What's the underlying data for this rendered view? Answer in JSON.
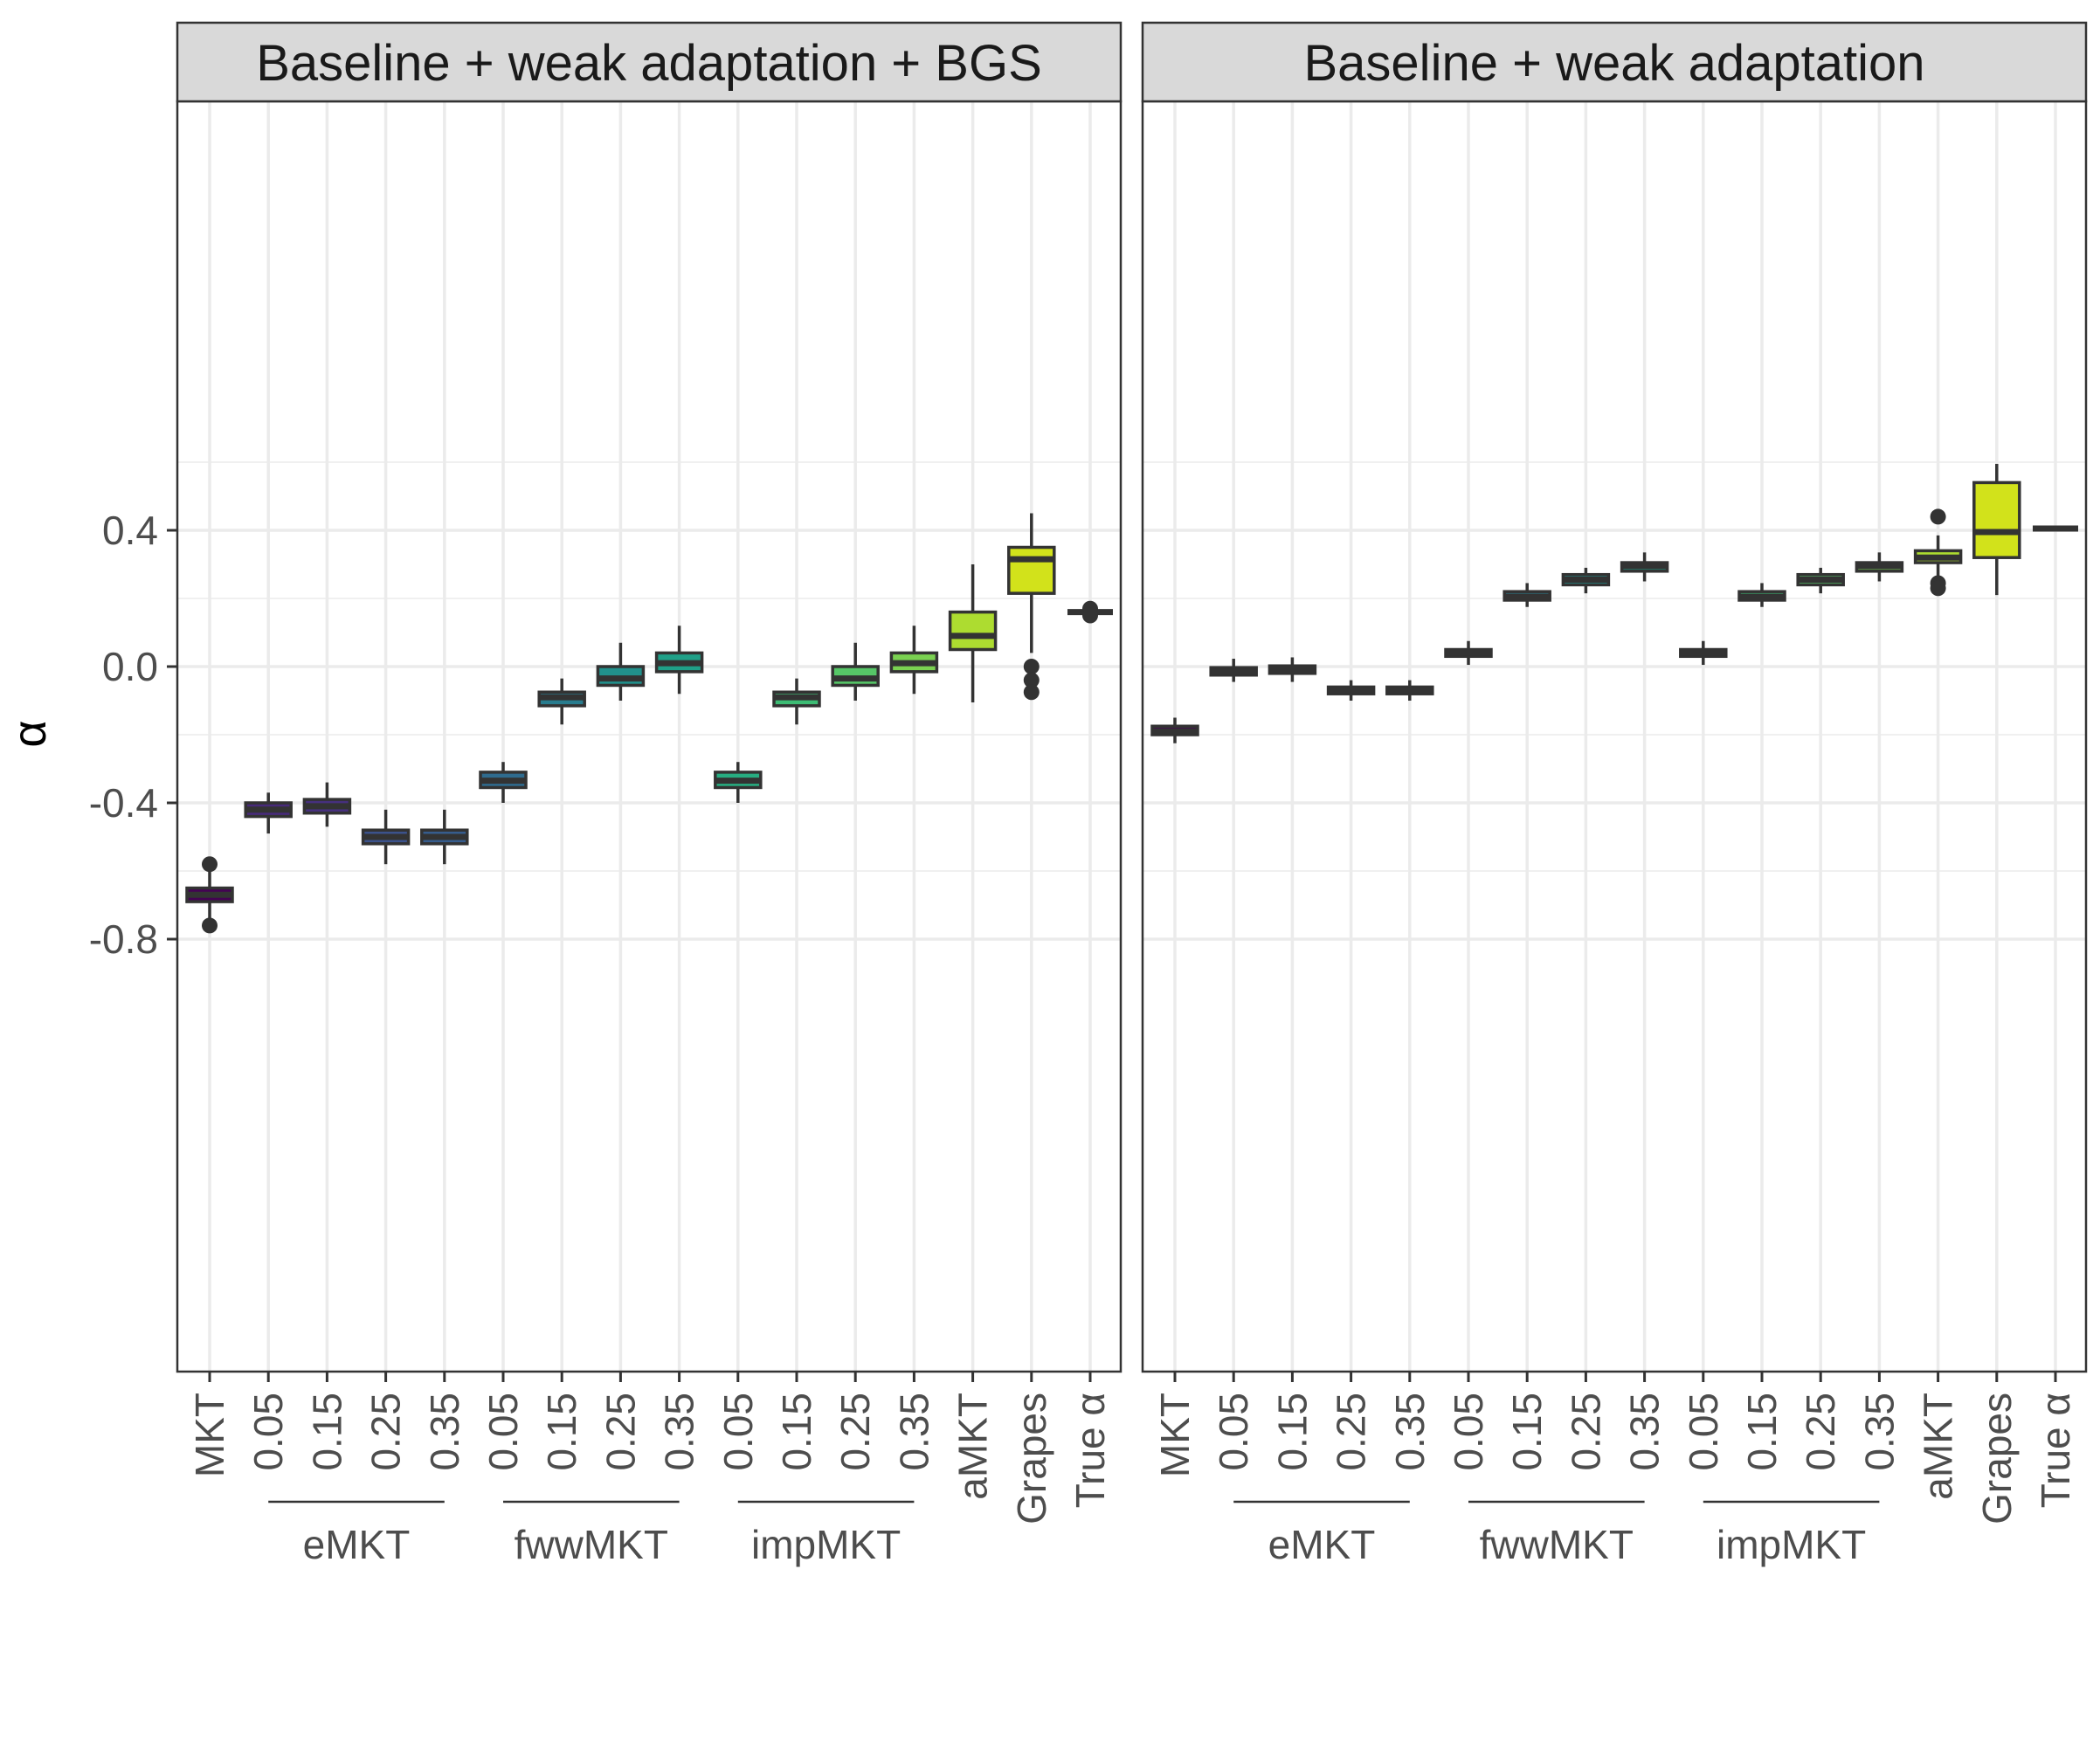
{
  "chart_data": {
    "type": "boxplot",
    "ylabel": "α",
    "ylim": [
      -0.83,
      0.66
    ],
    "y_ticks": [
      "0.4",
      "0.0",
      "-0.4",
      "-0.8"
    ],
    "y_tick_values": [
      0.4,
      0.0,
      -0.4,
      -0.8
    ],
    "grid": true,
    "categories": [
      {
        "label": "MKT",
        "color": "#440154"
      },
      {
        "label": "0.05",
        "color": "#472a7a"
      },
      {
        "label": "0.15",
        "color": "#46307e"
      },
      {
        "label": "0.25",
        "color": "#3b528b"
      },
      {
        "label": "0.35",
        "color": "#365c8d"
      },
      {
        "label": "0.05",
        "color": "#2f6b8e"
      },
      {
        "label": "0.15",
        "color": "#287c8e"
      },
      {
        "label": "0.25",
        "color": "#21918c"
      },
      {
        "label": "0.35",
        "color": "#1fa088"
      },
      {
        "label": "0.05",
        "color": "#27ad81"
      },
      {
        "label": "0.15",
        "color": "#3dbc74"
      },
      {
        "label": "0.25",
        "color": "#56c667"
      },
      {
        "label": "0.35",
        "color": "#7ad151"
      },
      {
        "label": "aMKT",
        "color": "#addc30"
      },
      {
        "label": "Grapes",
        "color": "#d2e21b"
      },
      {
        "label": "True α",
        "color": "#fde725"
      }
    ],
    "groups": [
      {
        "label": "eMKT",
        "from": 1,
        "to": 4
      },
      {
        "label": "fwwMKT",
        "from": 5,
        "to": 8
      },
      {
        "label": "impMKT",
        "from": 9,
        "to": 12
      }
    ],
    "facets": [
      {
        "title": "Baseline + weak adaptation + BGS",
        "boxes": [
          {
            "whisker_low": -0.74,
            "q1": -0.69,
            "median": -0.67,
            "q3": -0.65,
            "whisker_high": -0.6,
            "outliers": [
              -0.58,
              -0.76
            ]
          },
          {
            "whisker_low": -0.49,
            "q1": -0.44,
            "median": -0.42,
            "q3": -0.4,
            "whisker_high": -0.37,
            "outliers": []
          },
          {
            "whisker_low": -0.47,
            "q1": -0.43,
            "median": -0.41,
            "q3": -0.39,
            "whisker_high": -0.34,
            "outliers": []
          },
          {
            "whisker_low": -0.58,
            "q1": -0.52,
            "median": -0.5,
            "q3": -0.48,
            "whisker_high": -0.42,
            "outliers": []
          },
          {
            "whisker_low": -0.58,
            "q1": -0.52,
            "median": -0.5,
            "q3": -0.48,
            "whisker_high": -0.42,
            "outliers": []
          },
          {
            "whisker_low": -0.4,
            "q1": -0.355,
            "median": -0.335,
            "q3": -0.31,
            "whisker_high": -0.28,
            "outliers": []
          },
          {
            "whisker_low": -0.17,
            "q1": -0.115,
            "median": -0.09,
            "q3": -0.075,
            "whisker_high": -0.035,
            "outliers": []
          },
          {
            "whisker_low": -0.1,
            "q1": -0.055,
            "median": -0.035,
            "q3": 0.0,
            "whisker_high": 0.07,
            "outliers": []
          },
          {
            "whisker_low": -0.08,
            "q1": -0.015,
            "median": 0.01,
            "q3": 0.04,
            "whisker_high": 0.12,
            "outliers": []
          },
          {
            "whisker_low": -0.4,
            "q1": -0.355,
            "median": -0.335,
            "q3": -0.31,
            "whisker_high": -0.28,
            "outliers": []
          },
          {
            "whisker_low": -0.17,
            "q1": -0.115,
            "median": -0.09,
            "q3": -0.075,
            "whisker_high": -0.035,
            "outliers": []
          },
          {
            "whisker_low": -0.1,
            "q1": -0.055,
            "median": -0.035,
            "q3": 0.0,
            "whisker_high": 0.07,
            "outliers": []
          },
          {
            "whisker_low": -0.08,
            "q1": -0.015,
            "median": 0.01,
            "q3": 0.04,
            "whisker_high": 0.12,
            "outliers": []
          },
          {
            "whisker_low": -0.105,
            "q1": 0.05,
            "median": 0.09,
            "q3": 0.16,
            "whisker_high": 0.3,
            "outliers": []
          },
          {
            "whisker_low": 0.04,
            "q1": 0.215,
            "median": 0.315,
            "q3": 0.35,
            "whisker_high": 0.45,
            "outliers": [
              0.0,
              -0.04,
              -0.075
            ]
          },
          {
            "whisker_low": 0.16,
            "q1": 0.16,
            "median": 0.16,
            "q3": 0.16,
            "whisker_high": 0.16,
            "outliers": [
              0.17,
              0.15
            ]
          }
        ]
      },
      {
        "title": "Baseline + weak adaptation",
        "boxes": [
          {
            "whisker_low": -0.225,
            "q1": -0.2,
            "median": -0.19,
            "q3": -0.175,
            "whisker_high": -0.15,
            "outliers": []
          },
          {
            "whisker_low": -0.045,
            "q1": -0.025,
            "median": -0.015,
            "q3": -0.003,
            "whisker_high": 0.023,
            "outliers": []
          },
          {
            "whisker_low": -0.045,
            "q1": -0.02,
            "median": -0.01,
            "q3": 0.002,
            "whisker_high": 0.027,
            "outliers": []
          },
          {
            "whisker_low": -0.1,
            "q1": -0.08,
            "median": -0.07,
            "q3": -0.06,
            "whisker_high": -0.04,
            "outliers": []
          },
          {
            "whisker_low": -0.1,
            "q1": -0.08,
            "median": -0.07,
            "q3": -0.06,
            "whisker_high": -0.04,
            "outliers": []
          },
          {
            "whisker_low": 0.005,
            "q1": 0.03,
            "median": 0.04,
            "q3": 0.05,
            "whisker_high": 0.075,
            "outliers": []
          },
          {
            "whisker_low": 0.175,
            "q1": 0.195,
            "median": 0.205,
            "q3": 0.22,
            "whisker_high": 0.245,
            "outliers": []
          },
          {
            "whisker_low": 0.215,
            "q1": 0.24,
            "median": 0.255,
            "q3": 0.27,
            "whisker_high": 0.29,
            "outliers": []
          },
          {
            "whisker_low": 0.25,
            "q1": 0.28,
            "median": 0.295,
            "q3": 0.305,
            "whisker_high": 0.335,
            "outliers": []
          },
          {
            "whisker_low": 0.005,
            "q1": 0.03,
            "median": 0.04,
            "q3": 0.05,
            "whisker_high": 0.075,
            "outliers": []
          },
          {
            "whisker_low": 0.175,
            "q1": 0.195,
            "median": 0.205,
            "q3": 0.22,
            "whisker_high": 0.245,
            "outliers": []
          },
          {
            "whisker_low": 0.215,
            "q1": 0.24,
            "median": 0.255,
            "q3": 0.27,
            "whisker_high": 0.29,
            "outliers": []
          },
          {
            "whisker_low": 0.25,
            "q1": 0.28,
            "median": 0.295,
            "q3": 0.305,
            "whisker_high": 0.335,
            "outliers": []
          },
          {
            "whisker_low": 0.265,
            "q1": 0.305,
            "median": 0.32,
            "q3": 0.34,
            "whisker_high": 0.385,
            "outliers": [
              0.44,
              0.245,
              0.23
            ]
          },
          {
            "whisker_low": 0.21,
            "q1": 0.32,
            "median": 0.395,
            "q3": 0.54,
            "whisker_high": 0.595,
            "outliers": []
          },
          {
            "whisker_low": 0.405,
            "q1": 0.405,
            "median": 0.405,
            "q3": 0.405,
            "whisker_high": 0.405,
            "outliers": []
          }
        ]
      }
    ]
  }
}
